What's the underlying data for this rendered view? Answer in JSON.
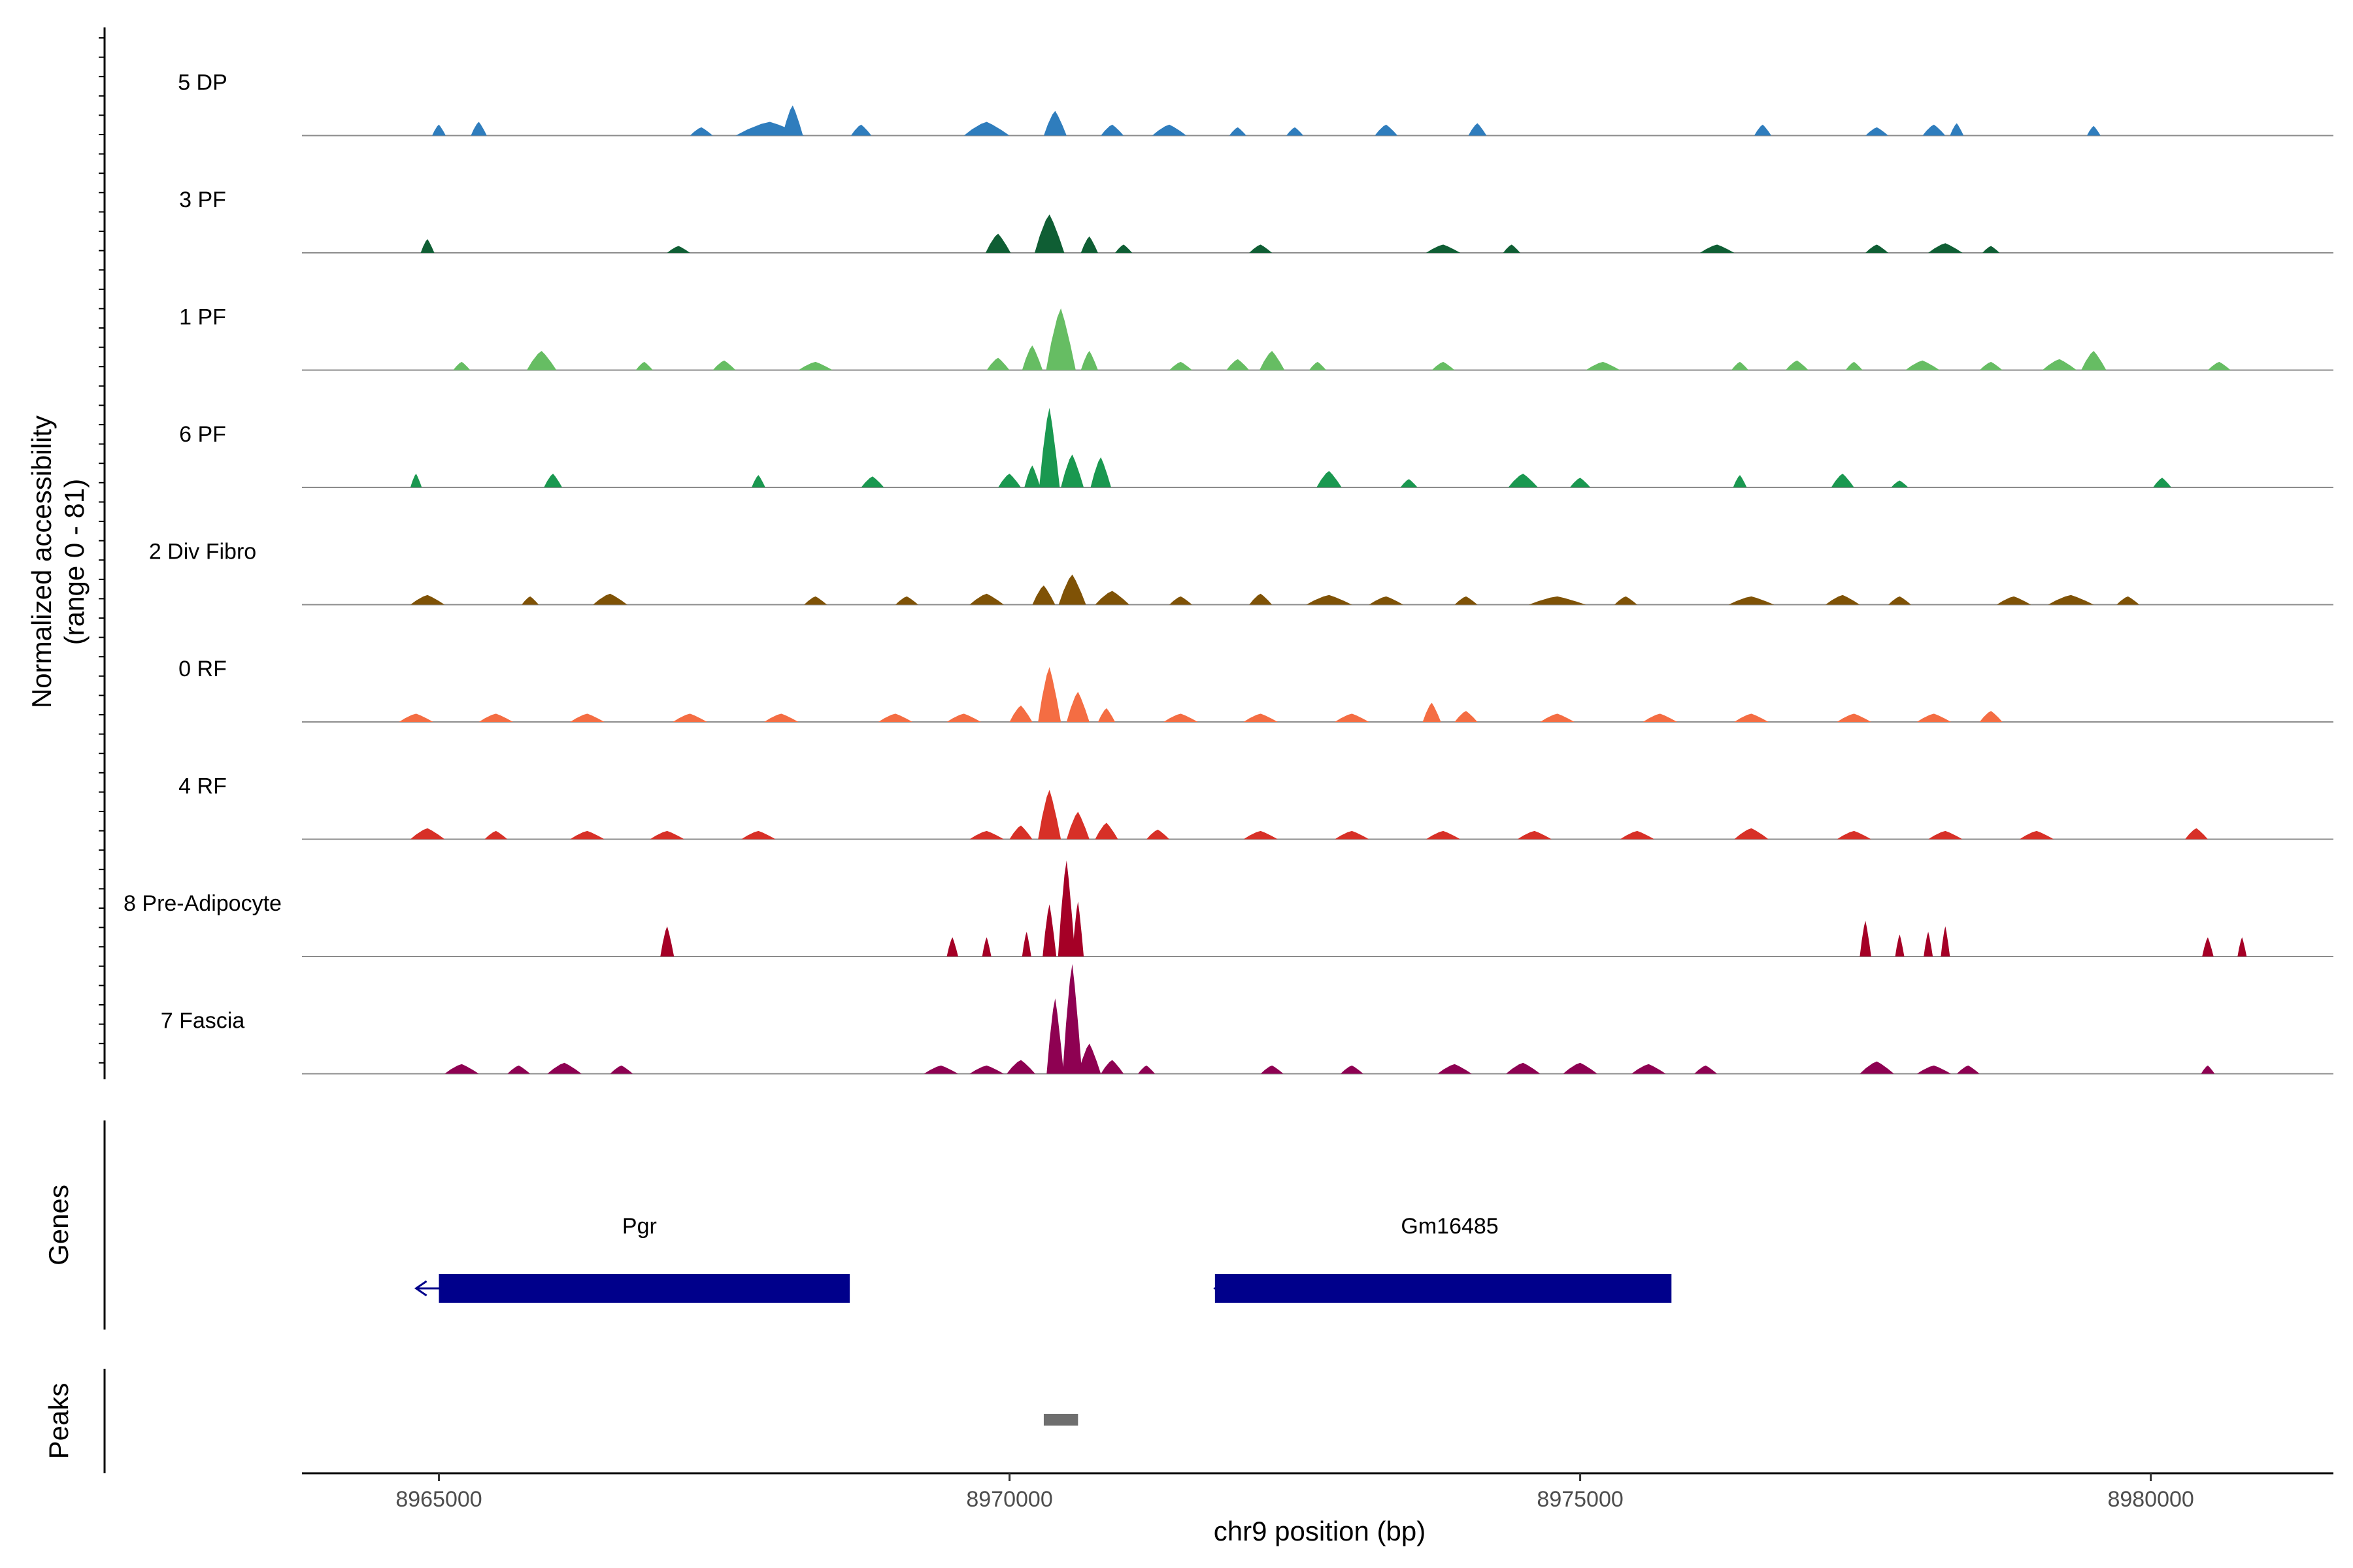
{
  "chart_data": {
    "type": "area",
    "title": "",
    "y_axis_title_line1": "Normalized accessibility",
    "y_axis_title_line2": "(range 0 - 81)",
    "ylim": [
      0,
      81
    ],
    "xlabel": "chr9 position (bp)",
    "xlim": [
      8963800,
      8981600
    ],
    "x_ticks": [
      8965000,
      8970000,
      8975000,
      8980000
    ],
    "x_tick_labels": [
      "8965000",
      "8970000",
      "8975000",
      "8980000"
    ],
    "tracks": [
      {
        "name": "5 DP",
        "color": "#2f7dbd",
        "peaks": [
          [
            8965000,
            8,
            120
          ],
          [
            8965350,
            10,
            140
          ],
          [
            8967300,
            6,
            200
          ],
          [
            8967900,
            10,
            600
          ],
          [
            8968100,
            22,
            180
          ],
          [
            8968700,
            8,
            180
          ],
          [
            8969800,
            10,
            400
          ],
          [
            8970400,
            18,
            200
          ],
          [
            8970900,
            8,
            200
          ],
          [
            8971400,
            8,
            300
          ],
          [
            8972000,
            6,
            150
          ],
          [
            8972500,
            6,
            150
          ],
          [
            8973300,
            8,
            200
          ],
          [
            8974100,
            9,
            160
          ],
          [
            8976600,
            8,
            150
          ],
          [
            8977600,
            6,
            200
          ],
          [
            8978100,
            8,
            200
          ],
          [
            8978300,
            9,
            120
          ],
          [
            8979500,
            7,
            120
          ]
        ]
      },
      {
        "name": "3 PF",
        "color": "#0f5e34",
        "peaks": [
          [
            8964900,
            10,
            120
          ],
          [
            8967100,
            5,
            200
          ],
          [
            8969900,
            14,
            220
          ],
          [
            8970350,
            28,
            260
          ],
          [
            8970700,
            12,
            150
          ],
          [
            8971000,
            6,
            150
          ],
          [
            8972200,
            6,
            200
          ],
          [
            8973800,
            6,
            300
          ],
          [
            8974400,
            6,
            150
          ],
          [
            8976200,
            6,
            300
          ],
          [
            8977600,
            6,
            200
          ],
          [
            8978200,
            7,
            300
          ],
          [
            8978600,
            5,
            150
          ]
        ]
      },
      {
        "name": "1 PF",
        "color": "#66bd63",
        "peaks": [
          [
            8965200,
            6,
            150
          ],
          [
            8965900,
            14,
            260
          ],
          [
            8966800,
            6,
            150
          ],
          [
            8967500,
            7,
            200
          ],
          [
            8968300,
            6,
            300
          ],
          [
            8969900,
            9,
            200
          ],
          [
            8970200,
            18,
            180
          ],
          [
            8970450,
            45,
            260
          ],
          [
            8970700,
            14,
            150
          ],
          [
            8971500,
            6,
            200
          ],
          [
            8972000,
            8,
            200
          ],
          [
            8972300,
            14,
            220
          ],
          [
            8972700,
            6,
            150
          ],
          [
            8973800,
            6,
            200
          ],
          [
            8975200,
            6,
            300
          ],
          [
            8976400,
            6,
            150
          ],
          [
            8976900,
            7,
            200
          ],
          [
            8977400,
            6,
            150
          ],
          [
            8978000,
            7,
            300
          ],
          [
            8978600,
            6,
            200
          ],
          [
            8979200,
            8,
            300
          ],
          [
            8979500,
            14,
            220
          ],
          [
            8980600,
            6,
            200
          ]
        ]
      },
      {
        "name": "6 PF",
        "color": "#1a9850",
        "peaks": [
          [
            8964800,
            10,
            100
          ],
          [
            8966000,
            10,
            160
          ],
          [
            8967800,
            9,
            120
          ],
          [
            8968800,
            8,
            200
          ],
          [
            8970000,
            10,
            200
          ],
          [
            8970200,
            16,
            140
          ],
          [
            8970350,
            58,
            180
          ],
          [
            8970550,
            24,
            200
          ],
          [
            8970800,
            22,
            180
          ],
          [
            8972800,
            12,
            220
          ],
          [
            8973500,
            6,
            150
          ],
          [
            8974500,
            10,
            260
          ],
          [
            8975000,
            7,
            180
          ],
          [
            8976400,
            9,
            120
          ],
          [
            8977300,
            10,
            200
          ],
          [
            8977800,
            5,
            150
          ],
          [
            8980100,
            7,
            160
          ]
        ]
      },
      {
        "name": "2 Div Fibro",
        "color": "#7f5206",
        "peaks": [
          [
            8964900,
            7,
            300
          ],
          [
            8965800,
            6,
            150
          ],
          [
            8966500,
            8,
            300
          ],
          [
            8968300,
            6,
            200
          ],
          [
            8969100,
            6,
            200
          ],
          [
            8969800,
            8,
            300
          ],
          [
            8970300,
            14,
            200
          ],
          [
            8970550,
            22,
            240
          ],
          [
            8970900,
            10,
            300
          ],
          [
            8971500,
            6,
            200
          ],
          [
            8972200,
            8,
            200
          ],
          [
            8972800,
            7,
            400
          ],
          [
            8973300,
            6,
            300
          ],
          [
            8974000,
            6,
            200
          ],
          [
            8974800,
            6,
            500
          ],
          [
            8975400,
            6,
            200
          ],
          [
            8976500,
            6,
            400
          ],
          [
            8977300,
            7,
            300
          ],
          [
            8977800,
            6,
            200
          ],
          [
            8978800,
            6,
            300
          ],
          [
            8979300,
            7,
            400
          ],
          [
            8979800,
            6,
            200
          ]
        ]
      },
      {
        "name": "0 RF",
        "color": "#f46d43",
        "peaks": [
          [
            8964800,
            6,
            300
          ],
          [
            8965500,
            6,
            300
          ],
          [
            8966300,
            6,
            300
          ],
          [
            8967200,
            6,
            300
          ],
          [
            8968000,
            6,
            300
          ],
          [
            8969000,
            6,
            300
          ],
          [
            8969600,
            6,
            300
          ],
          [
            8970100,
            12,
            200
          ],
          [
            8970350,
            40,
            200
          ],
          [
            8970600,
            22,
            200
          ],
          [
            8970850,
            10,
            150
          ],
          [
            8971500,
            6,
            300
          ],
          [
            8972200,
            6,
            300
          ],
          [
            8973000,
            6,
            300
          ],
          [
            8973700,
            14,
            160
          ],
          [
            8974000,
            8,
            200
          ],
          [
            8974800,
            6,
            300
          ],
          [
            8975700,
            6,
            300
          ],
          [
            8976500,
            6,
            300
          ],
          [
            8977400,
            6,
            300
          ],
          [
            8978100,
            6,
            300
          ],
          [
            8978600,
            8,
            200
          ]
        ]
      },
      {
        "name": "4 RF",
        "color": "#d73027",
        "peaks": [
          [
            8964900,
            8,
            300
          ],
          [
            8965500,
            6,
            200
          ],
          [
            8966300,
            6,
            300
          ],
          [
            8967000,
            6,
            300
          ],
          [
            8967800,
            6,
            300
          ],
          [
            8969800,
            6,
            300
          ],
          [
            8970100,
            10,
            200
          ],
          [
            8970350,
            36,
            200
          ],
          [
            8970600,
            20,
            200
          ],
          [
            8970850,
            12,
            200
          ],
          [
            8971300,
            7,
            200
          ],
          [
            8972200,
            6,
            300
          ],
          [
            8973000,
            6,
            300
          ],
          [
            8973800,
            6,
            300
          ],
          [
            8974600,
            6,
            300
          ],
          [
            8975500,
            6,
            300
          ],
          [
            8976500,
            8,
            300
          ],
          [
            8977400,
            6,
            300
          ],
          [
            8978200,
            6,
            300
          ],
          [
            8979000,
            6,
            300
          ],
          [
            8980400,
            8,
            200
          ]
        ]
      },
      {
        "name": "8 Pre-Adipocyte",
        "color": "#a50026",
        "peaks": [
          [
            8967000,
            22,
            120
          ],
          [
            8969500,
            14,
            100
          ],
          [
            8969800,
            14,
            80
          ],
          [
            8970150,
            18,
            80
          ],
          [
            8970350,
            38,
            120
          ],
          [
            8970500,
            70,
            150
          ],
          [
            8970600,
            40,
            100
          ],
          [
            8977500,
            26,
            100
          ],
          [
            8977800,
            16,
            80
          ],
          [
            8978050,
            18,
            80
          ],
          [
            8978200,
            22,
            80
          ],
          [
            8980500,
            14,
            100
          ],
          [
            8980800,
            14,
            80
          ]
        ]
      },
      {
        "name": "7 Fascia",
        "color": "#8e0152",
        "peaks": [
          [
            8965200,
            7,
            300
          ],
          [
            8965700,
            6,
            200
          ],
          [
            8966100,
            8,
            300
          ],
          [
            8966600,
            6,
            200
          ],
          [
            8969400,
            6,
            300
          ],
          [
            8969800,
            6,
            300
          ],
          [
            8970100,
            10,
            250
          ],
          [
            8970400,
            55,
            150
          ],
          [
            8970550,
            80,
            170
          ],
          [
            8970700,
            22,
            200
          ],
          [
            8970900,
            10,
            200
          ],
          [
            8971200,
            6,
            150
          ],
          [
            8972300,
            6,
            200
          ],
          [
            8973000,
            6,
            200
          ],
          [
            8973900,
            7,
            300
          ],
          [
            8974500,
            8,
            300
          ],
          [
            8975000,
            8,
            300
          ],
          [
            8975600,
            7,
            300
          ],
          [
            8976100,
            6,
            200
          ],
          [
            8977600,
            9,
            300
          ],
          [
            8978100,
            6,
            300
          ],
          [
            8978400,
            6,
            200
          ],
          [
            8980500,
            6,
            120
          ]
        ]
      }
    ],
    "genes_track_label": "Genes",
    "genes": [
      {
        "name": "Pgr",
        "start": 8964800,
        "end": 8968600,
        "body_start": 8965000,
        "strand": "-",
        "color": "#00008b"
      },
      {
        "name": "Gm16485",
        "start": 8971800,
        "end": 8975800,
        "body_start": 8971800,
        "strand": "-",
        "color": "#00008b"
      }
    ],
    "peaks_track_label": "Peaks",
    "peak_regions": [
      {
        "start": 8970300,
        "end": 8970600,
        "color": "#6e6e6e"
      }
    ]
  }
}
